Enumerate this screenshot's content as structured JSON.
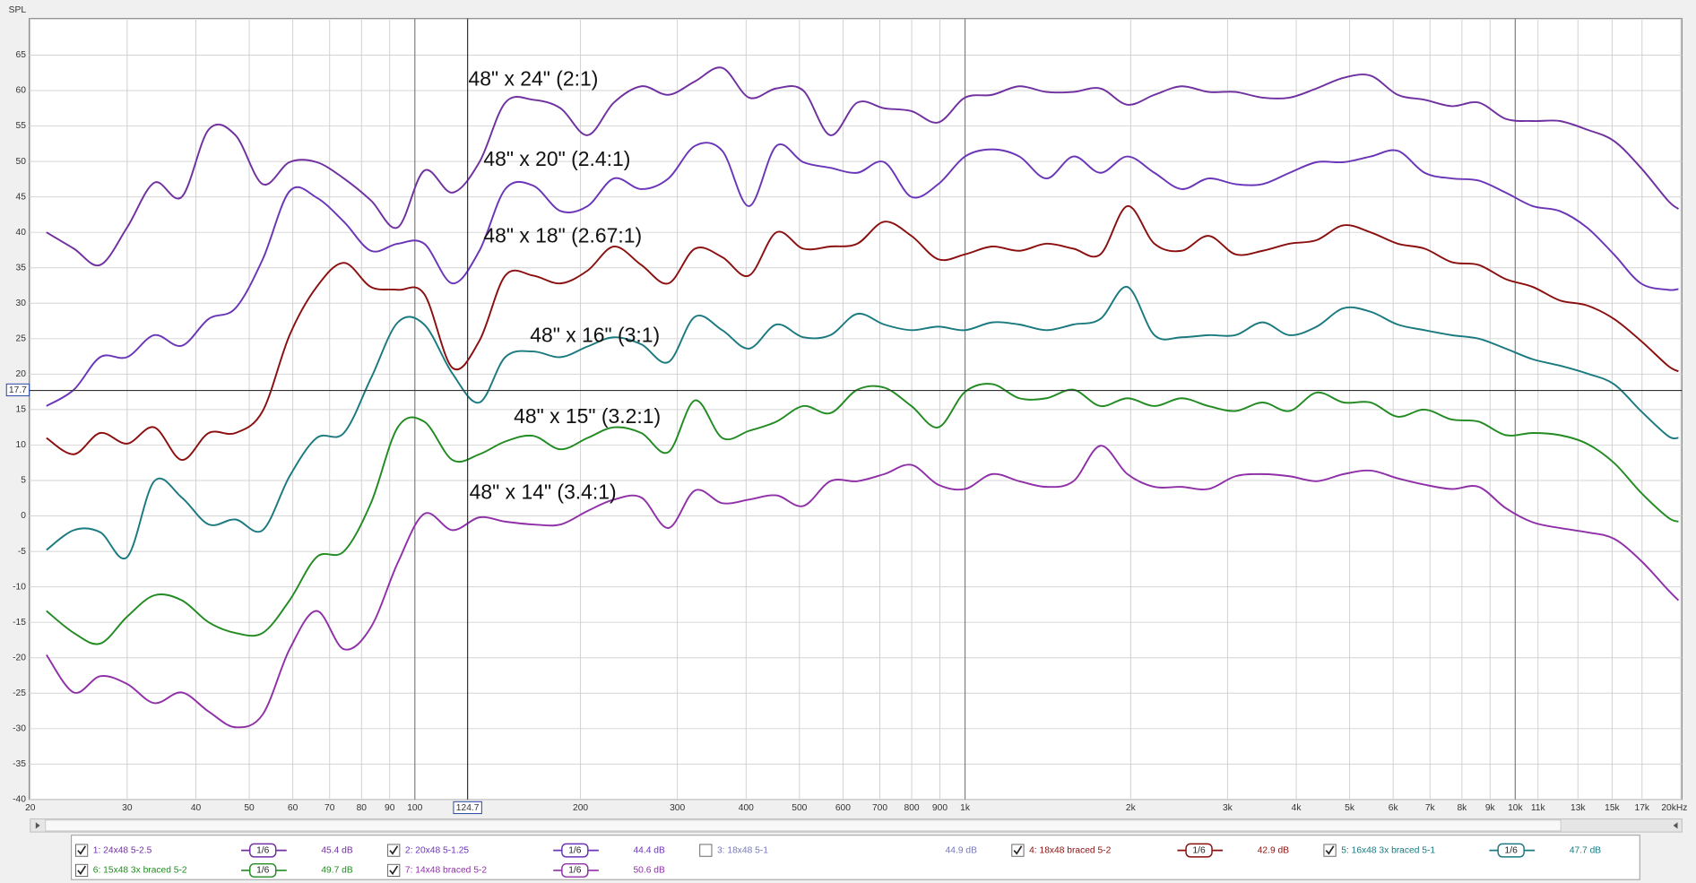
{
  "chart_data": {
    "type": "line",
    "y_label": "SPL",
    "xlim": [
      20,
      20000
    ],
    "ylim": [
      -40,
      70
    ],
    "log_x": true,
    "grid": true,
    "xticks": [
      20,
      30,
      40,
      50,
      60,
      70,
      80,
      90,
      100,
      200,
      300,
      400,
      500,
      600,
      700,
      800,
      900,
      {
        "value": 1000,
        "label": "1k"
      },
      {
        "value": 2000,
        "label": "2k"
      },
      {
        "value": 3000,
        "label": "3k"
      },
      {
        "value": 4000,
        "label": "4k"
      },
      {
        "value": 5000,
        "label": "5k"
      },
      {
        "value": 6000,
        "label": "6k"
      },
      {
        "value": 7000,
        "label": "7k"
      },
      {
        "value": 8000,
        "label": "8k"
      },
      {
        "value": 9000,
        "label": "9k"
      },
      {
        "value": 10000,
        "label": "10k"
      },
      {
        "value": 11000,
        "label": "11k"
      },
      {
        "value": 13000,
        "label": "13k"
      },
      {
        "value": 15000,
        "label": "15k"
      },
      {
        "value": 17000,
        "label": "17k"
      },
      {
        "value": 20000,
        "label": "20kHz"
      }
    ],
    "yticks": [
      -40,
      -35,
      -30,
      -25,
      -20,
      -15,
      -10,
      -5,
      0,
      5,
      10,
      15,
      20,
      25,
      30,
      35,
      40,
      45,
      50,
      55,
      60,
      65
    ],
    "cursor": {
      "x": 124.7,
      "y": 17.7
    },
    "annotations": [
      "48\" x 24\" (2:1)",
      "48\" x 20\" (2.4:1)",
      "48\" x 18\" (2.67:1)",
      "48\" x 16\" (3:1)",
      "48\" x 15\" (3.2:1)",
      "48\" x 14\" (3.4:1)"
    ],
    "x": [
      21.4,
      24,
      26.8,
      30,
      33.6,
      37.7,
      42.2,
      47.2,
      52.9,
      59.2,
      66.3,
      74.3,
      83.2,
      93.1,
      104,
      117,
      131,
      146,
      164,
      184,
      206,
      230,
      258,
      289,
      323,
      362,
      405,
      454,
      508,
      569,
      637,
      713,
      799,
      894,
      1000,
      1120,
      1255,
      1406,
      1574,
      1762,
      1973,
      2209,
      2474,
      2770,
      3102,
      3473,
      3889,
      4355,
      4876,
      5460,
      6114,
      6846,
      7666,
      8584,
      9611,
      10760,
      12050,
      13490,
      15110,
      16920,
      18940,
      19800
    ],
    "series": [
      {
        "name": "1: 24x48 5-2.5",
        "color": "#7030a0",
        "checked": true,
        "smoothing": "1/6",
        "level": "45.4 dB",
        "values": [
          40,
          37.7,
          35.4,
          40.7,
          47,
          45,
          54.5,
          53.7,
          46.8,
          49.9,
          49.9,
          47.6,
          44.5,
          40.7,
          48.7,
          45.6,
          49.9,
          58.3,
          58.7,
          57.5,
          53.7,
          58.3,
          60.6,
          59.4,
          61.3,
          63.2,
          59,
          60.3,
          60,
          53.7,
          58.3,
          57.5,
          57.1,
          55.5,
          59,
          59.4,
          60.6,
          59.8,
          59.8,
          60.3,
          58,
          59.4,
          60.6,
          59.8,
          59.8,
          59,
          59,
          60.3,
          61.8,
          62.1,
          59.4,
          58.7,
          57.8,
          58.3,
          56,
          55.7,
          55.7,
          54.5,
          52.9,
          49.1,
          44.5,
          43.3
        ]
      },
      {
        "name": "2: 20x48 5-1.25",
        "color": "#6a35b8",
        "checked": true,
        "smoothing": "1/6",
        "level": "44.4 dB",
        "values": [
          15.5,
          17.8,
          22.4,
          22.4,
          25.5,
          24,
          27.8,
          29.3,
          36.2,
          45.8,
          44.9,
          41.5,
          37.4,
          38.4,
          38.4,
          32.8,
          37.4,
          46.1,
          46.6,
          43,
          43.7,
          47.6,
          46.1,
          47.6,
          52.2,
          51.5,
          43.7,
          52.2,
          49.9,
          49.1,
          48.4,
          49.9,
          45,
          46.8,
          50.7,
          51.7,
          50.7,
          47.6,
          50.7,
          48.4,
          50.7,
          48.4,
          46.1,
          47.6,
          46.8,
          46.8,
          48.4,
          49.9,
          49.9,
          50.7,
          51.5,
          48.4,
          47.6,
          47.3,
          45.6,
          43.7,
          43,
          40.7,
          36.9,
          32.8,
          31.9,
          32
        ]
      },
      {
        "name": "3: 18x48 5-1",
        "color": "#7878b8",
        "checked": false,
        "level": "44.9 dB"
      },
      {
        "name": "4: 18x48 braced 5-2",
        "color": "#8b0f0f",
        "checked": true,
        "smoothing": "1/6",
        "level": "42.9 dB",
        "values": [
          11,
          8.7,
          11.7,
          10.2,
          12.5,
          7.9,
          11.7,
          11.7,
          14.8,
          25.5,
          32.3,
          35.7,
          32.3,
          31.9,
          31.3,
          20.9,
          24.7,
          33.9,
          33.9,
          32.8,
          34.6,
          38,
          35.4,
          32.8,
          37.7,
          36.5,
          33.9,
          40,
          37.7,
          38,
          38.4,
          41.5,
          39.5,
          36.2,
          36.9,
          38,
          37.4,
          38.4,
          37.7,
          36.9,
          43.7,
          38.4,
          37.4,
          39.5,
          36.9,
          37.4,
          38.4,
          38.9,
          41,
          40,
          38.4,
          37.7,
          35.8,
          35.4,
          33.4,
          32.3,
          30.4,
          29.7,
          27.8,
          24.7,
          21.2,
          20.4
        ]
      },
      {
        "name": "5: 16x48 3x braced 5-1",
        "color": "#1a7a80",
        "checked": true,
        "smoothing": "1/6",
        "level": "47.7 dB",
        "values": [
          -4.8,
          -2,
          -2.3,
          -5.8,
          4.9,
          2.6,
          -1.2,
          -0.5,
          -2,
          5.6,
          11,
          11.7,
          19.4,
          27.3,
          27,
          20.1,
          16,
          22.4,
          23.2,
          22.4,
          23.9,
          25.2,
          24.2,
          21.7,
          28.1,
          26.2,
          23.6,
          27,
          25.2,
          25.5,
          28.5,
          27,
          26.2,
          26.7,
          26.2,
          27.3,
          27,
          26.2,
          27,
          27.8,
          32.3,
          25.5,
          25.2,
          25.5,
          25.5,
          27.3,
          25.5,
          26.7,
          29.3,
          28.8,
          27,
          26.2,
          25.5,
          25,
          23.6,
          22.1,
          21.2,
          20.1,
          18.6,
          14.8,
          11.3,
          11
        ]
      },
      {
        "name": "6: 15x48 3x braced 5-2",
        "color": "#228b22",
        "checked": true,
        "smoothing": "1/6",
        "level": "49.7 dB",
        "values": [
          -13.4,
          -16.5,
          -18,
          -14.2,
          -11.2,
          -11.9,
          -15,
          -16.5,
          -16.5,
          -11.9,
          -5.8,
          -5,
          1.8,
          12.5,
          13.3,
          7.9,
          8.7,
          10.5,
          11.3,
          9.4,
          11,
          12.5,
          11.7,
          9,
          16.3,
          11,
          12,
          13.3,
          15.5,
          14.5,
          17.8,
          18.1,
          15.5,
          12.5,
          17.5,
          18.6,
          16.6,
          16.6,
          17.8,
          15.5,
          16.6,
          15.5,
          16.6,
          15.5,
          14.8,
          16,
          14.8,
          17.4,
          16,
          16,
          14,
          15,
          13.6,
          13.3,
          11.4,
          11.7,
          11.4,
          10.2,
          7.5,
          3.3,
          -0.2,
          -0.8
        ]
      },
      {
        "name": "7: 14x48 braced 5-2",
        "color": "#9030a8",
        "checked": true,
        "smoothing": "1/6",
        "level": "50.6 dB",
        "values": [
          -19.6,
          -24.9,
          -22.6,
          -23.7,
          -26.4,
          -24.9,
          -27.6,
          -29.8,
          -28,
          -18.8,
          -13.4,
          -18.8,
          -15.7,
          -6.6,
          0.3,
          -2,
          -0.2,
          -0.8,
          -1.2,
          -1.2,
          0.7,
          2.3,
          2.6,
          -1.7,
          3.6,
          1.8,
          2.3,
          2.9,
          1.4,
          4.9,
          4.9,
          5.9,
          7.2,
          4.4,
          3.8,
          5.9,
          4.9,
          4.1,
          4.9,
          9.9,
          5.9,
          4.1,
          4.1,
          3.8,
          5.6,
          5.9,
          5.6,
          4.9,
          5.9,
          6.4,
          5.3,
          4.4,
          3.8,
          4.1,
          1.1,
          -0.9,
          -1.7,
          -2.3,
          -3.2,
          -6.3,
          -10.4,
          -11.9
        ]
      }
    ]
  }
}
